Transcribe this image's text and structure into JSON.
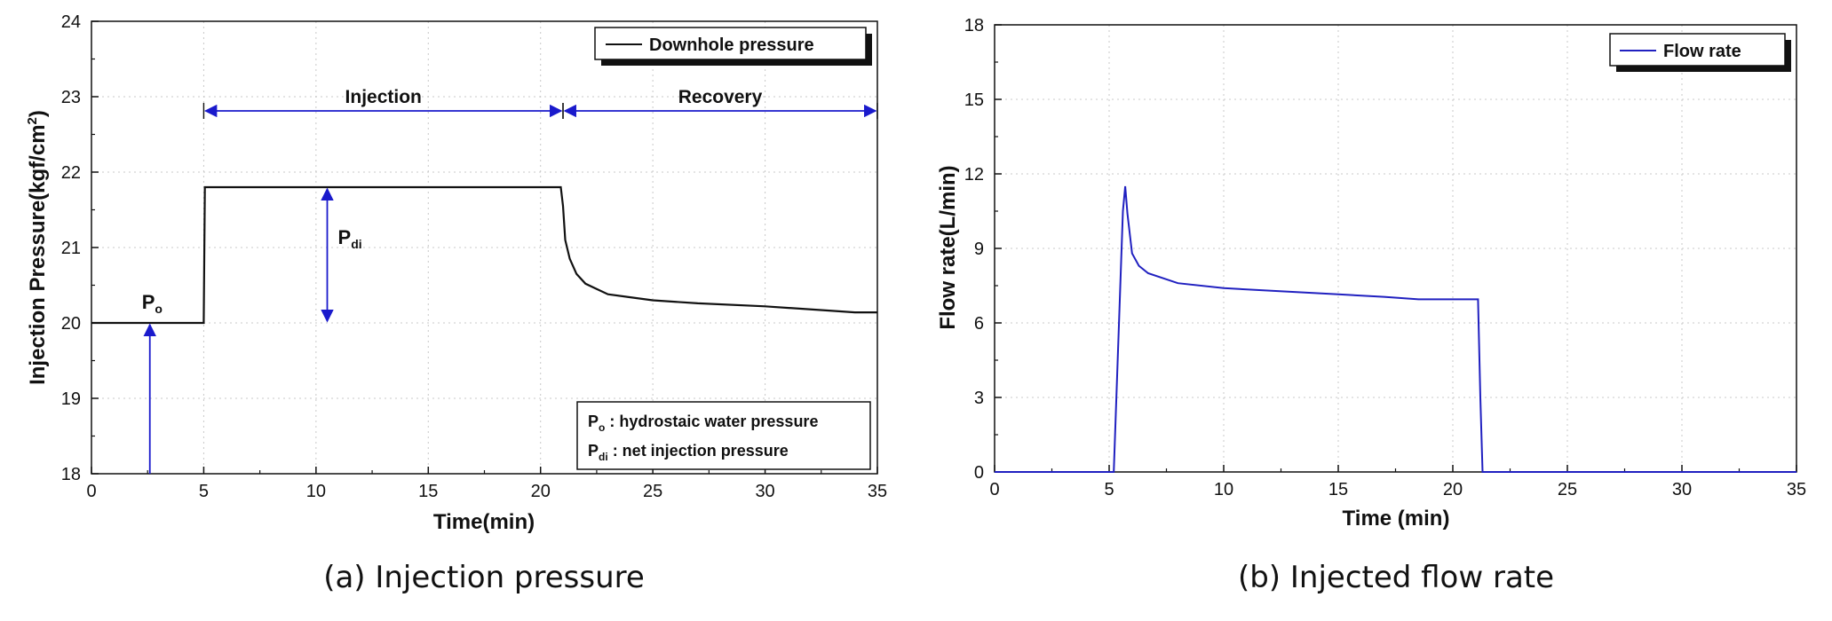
{
  "chart_data": [
    {
      "type": "line",
      "caption": "(a) Injection pressure",
      "xlabel": "Time(min)",
      "ylabel_main": "Injection Pressure(kgf/cm",
      "ylabel_sup": "2",
      "ylabel_tail": ")",
      "xlim": [
        0,
        35
      ],
      "ylim": [
        18,
        24
      ],
      "xticks": [
        "0",
        "5",
        "10",
        "15",
        "20",
        "25",
        "30",
        "35"
      ],
      "yticks": [
        "18",
        "19",
        "20",
        "21",
        "22",
        "23",
        "24"
      ],
      "grid": true,
      "legend_position": "top-right",
      "series": [
        {
          "name": "Downhole  pressure",
          "color": "#111111",
          "x": [
            0,
            5,
            5.05,
            10,
            15,
            20.9,
            21,
            21.1,
            21.3,
            21.6,
            22,
            22.5,
            23,
            24,
            25,
            27,
            30,
            33,
            34,
            35
          ],
          "y": [
            20.0,
            20.0,
            21.8,
            21.8,
            21.8,
            21.8,
            21.55,
            21.1,
            20.85,
            20.65,
            20.52,
            20.45,
            20.38,
            20.34,
            20.3,
            20.26,
            20.22,
            20.16,
            20.14,
            20.14
          ]
        }
      ],
      "phases": [
        {
          "label": "Injection",
          "x_start": 5,
          "x_end": 21
        },
        {
          "label": "Recovery",
          "x_start": 21,
          "x_end": 35
        }
      ],
      "annotations": {
        "po_label": "P",
        "po_sub": "o",
        "pdi_label": "P",
        "pdi_sub": "di",
        "po_arrow_x": 2.6,
        "po_level": 20,
        "pdi_arrow_x": 10.5,
        "pdi_low": 20,
        "pdi_high": 21.8,
        "note_po_sym": "P",
        "note_po_sub": "o",
        "note_po_text": " : hydrostaic  water  pressure",
        "note_pdi_sym": "P",
        "note_pdi_sub": "di",
        "note_pdi_text": " : net  injection  pressure",
        "arrow_color": "#1a1acc"
      }
    },
    {
      "type": "line",
      "caption": "(b) Injected flow rate",
      "xlabel": "Time (min)",
      "ylabel": "Flow rate(L/min)",
      "xlim": [
        0,
        35
      ],
      "ylim": [
        0,
        18
      ],
      "xticks": [
        "0",
        "5",
        "10",
        "15",
        "20",
        "25",
        "30",
        "35"
      ],
      "yticks": [
        "0",
        "3",
        "6",
        "9",
        "12",
        "15",
        "18"
      ],
      "grid": true,
      "legend_position": "top-right",
      "series": [
        {
          "name": "Flow  rate",
          "color": "#2020c0",
          "x": [
            0,
            5.2,
            5.6,
            5.7,
            5.8,
            6.0,
            6.3,
            6.7,
            8,
            10,
            12,
            15,
            17,
            18.5,
            19,
            21.1,
            21.2,
            21.3,
            35
          ],
          "y": [
            0,
            0,
            10.5,
            11.5,
            10.4,
            8.8,
            8.3,
            8.0,
            7.6,
            7.4,
            7.3,
            7.15,
            7.05,
            6.95,
            6.95,
            6.95,
            3.0,
            0,
            0
          ]
        }
      ]
    }
  ]
}
